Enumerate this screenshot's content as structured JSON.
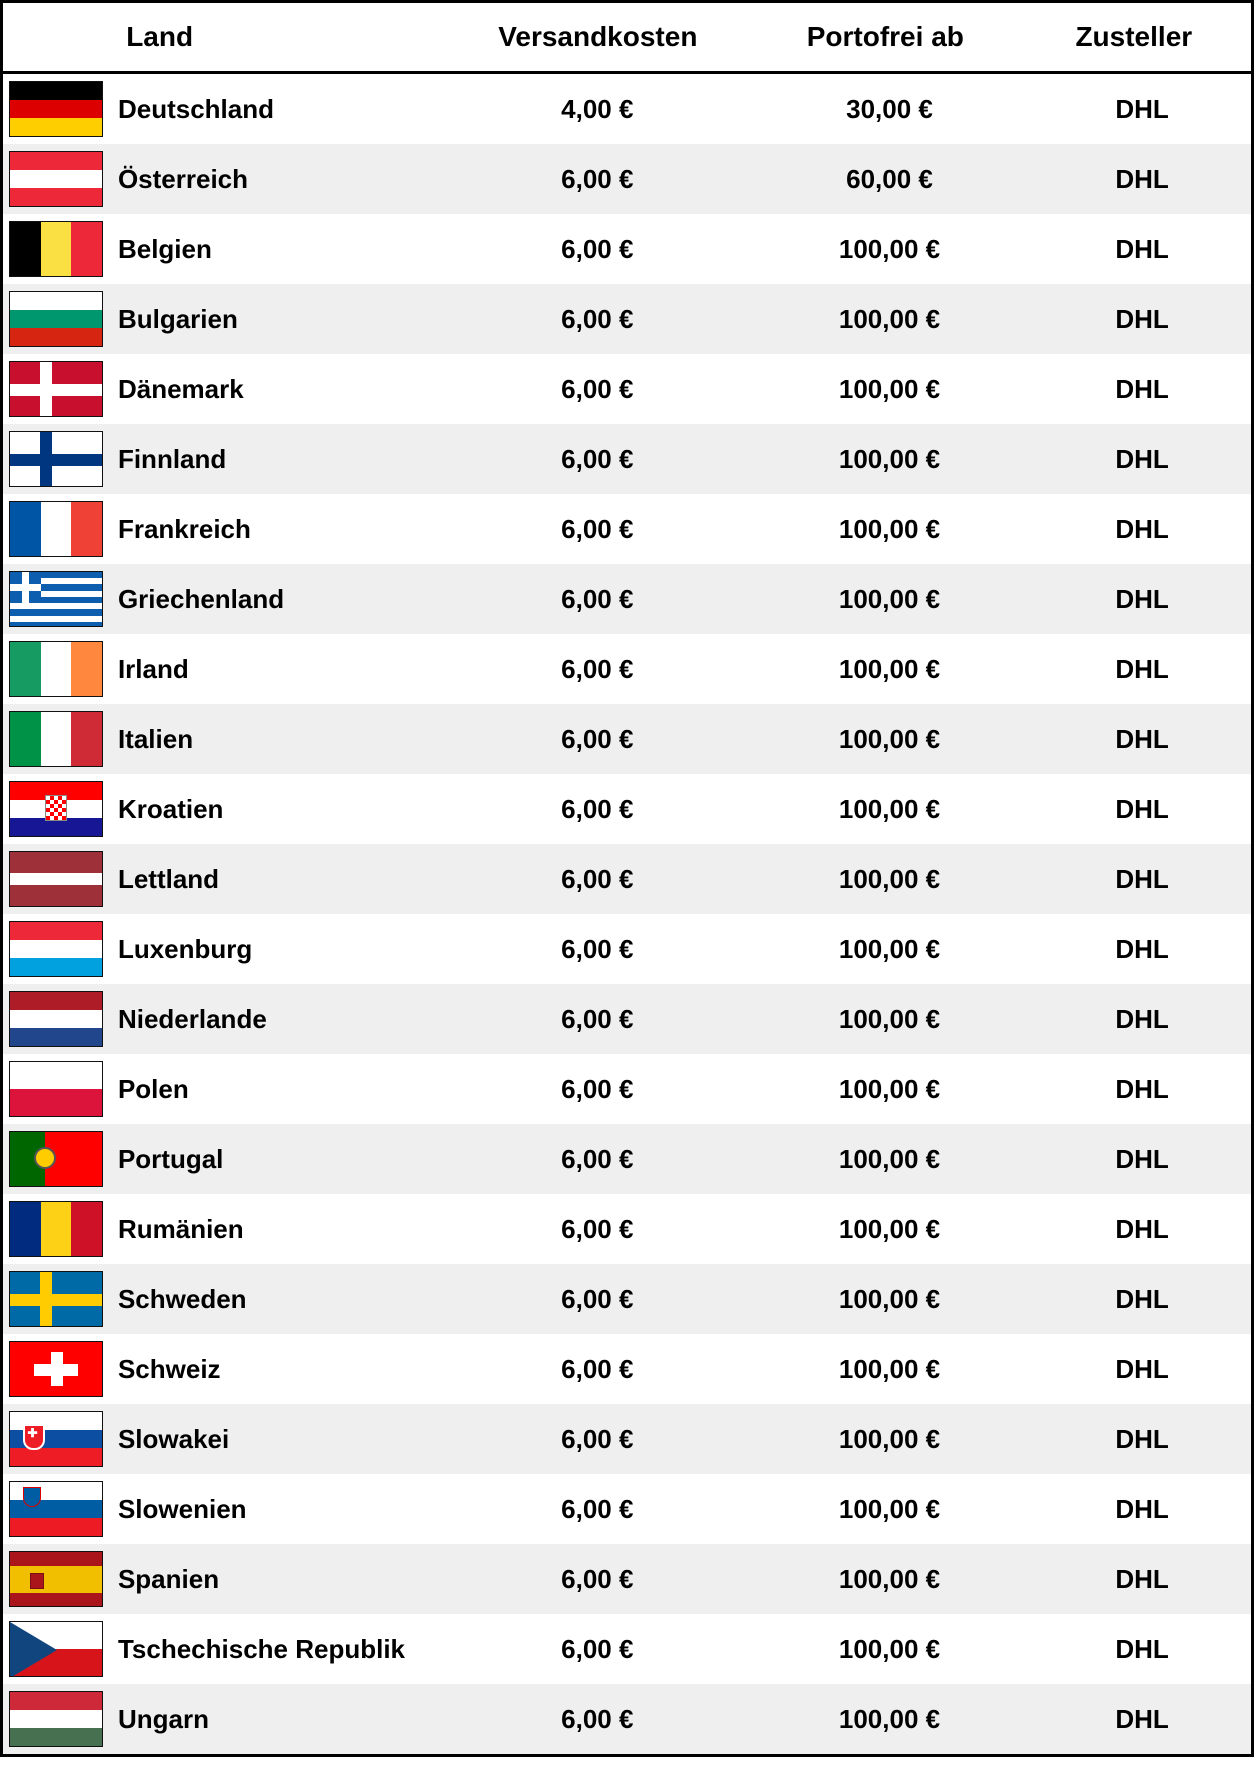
{
  "table": {
    "columns": {
      "land": "Land",
      "versandkosten": "Versandkosten",
      "portofrei": "Portofrei ab",
      "zusteller": "Zusteller"
    },
    "row_bg_odd": "#ffffff",
    "row_bg_even": "#efefef",
    "border_color": "#000000",
    "font_family": "Arial",
    "header_fontsize_pt": 21,
    "cell_fontsize_pt": 19,
    "rows": [
      {
        "flag": "de",
        "land": "Deutschland",
        "cost": "4,00 €",
        "free": "30,00 €",
        "zust": "DHL"
      },
      {
        "flag": "at",
        "land": "Österreich",
        "cost": "6,00 €",
        "free": "60,00 €",
        "zust": "DHL"
      },
      {
        "flag": "be",
        "land": "Belgien",
        "cost": "6,00 €",
        "free": "100,00 €",
        "zust": "DHL"
      },
      {
        "flag": "bg",
        "land": "Bulgarien",
        "cost": "6,00 €",
        "free": "100,00 €",
        "zust": "DHL"
      },
      {
        "flag": "dk",
        "land": "Dänemark",
        "cost": "6,00 €",
        "free": "100,00 €",
        "zust": "DHL"
      },
      {
        "flag": "fi",
        "land": "Finnland",
        "cost": "6,00 €",
        "free": "100,00 €",
        "zust": "DHL"
      },
      {
        "flag": "fr",
        "land": "Frankreich",
        "cost": "6,00 €",
        "free": "100,00 €",
        "zust": "DHL"
      },
      {
        "flag": "gr",
        "land": "Griechenland",
        "cost": "6,00 €",
        "free": "100,00 €",
        "zust": "DHL"
      },
      {
        "flag": "ie",
        "land": "Irland",
        "cost": "6,00 €",
        "free": "100,00 €",
        "zust": "DHL"
      },
      {
        "flag": "it",
        "land": "Italien",
        "cost": "6,00 €",
        "free": "100,00 €",
        "zust": "DHL"
      },
      {
        "flag": "hr",
        "land": "Kroatien",
        "cost": "6,00 €",
        "free": "100,00 €",
        "zust": "DHL"
      },
      {
        "flag": "lv",
        "land": "Lettland",
        "cost": "6,00 €",
        "free": "100,00 €",
        "zust": "DHL"
      },
      {
        "flag": "lu",
        "land": "Luxenburg",
        "cost": "6,00 €",
        "free": "100,00 €",
        "zust": "DHL"
      },
      {
        "flag": "nl",
        "land": "Niederlande",
        "cost": "6,00 €",
        "free": "100,00 €",
        "zust": "DHL"
      },
      {
        "flag": "pl",
        "land": "Polen",
        "cost": "6,00 €",
        "free": "100,00 €",
        "zust": "DHL"
      },
      {
        "flag": "pt",
        "land": "Portugal",
        "cost": "6,00 €",
        "free": "100,00 €",
        "zust": "DHL"
      },
      {
        "flag": "ro",
        "land": "Rumänien",
        "cost": "6,00 €",
        "free": "100,00 €",
        "zust": "DHL"
      },
      {
        "flag": "se",
        "land": "Schweden",
        "cost": "6,00 €",
        "free": "100,00 €",
        "zust": "DHL"
      },
      {
        "flag": "ch",
        "land": "Schweiz",
        "cost": "6,00 €",
        "free": "100,00 €",
        "zust": "DHL"
      },
      {
        "flag": "sk",
        "land": "Slowakei",
        "cost": "6,00 €",
        "free": "100,00 €",
        "zust": "DHL"
      },
      {
        "flag": "si",
        "land": "Slowenien",
        "cost": "6,00 €",
        "free": "100,00 €",
        "zust": "DHL"
      },
      {
        "flag": "es",
        "land": "Spanien",
        "cost": "6,00 €",
        "free": "100,00 €",
        "zust": "DHL"
      },
      {
        "flag": "cz",
        "land": "Tschechische Republik",
        "cost": "6,00 €",
        "free": "100,00 €",
        "zust": "DHL"
      },
      {
        "flag": "hu",
        "land": "Ungarn",
        "cost": "6,00 €",
        "free": "100,00 €",
        "zust": "DHL"
      }
    ],
    "flag_colors": {
      "de": [
        "#000000",
        "#dd0000",
        "#ffce00"
      ],
      "at": [
        "#ed2939",
        "#ffffff",
        "#ed2939"
      ],
      "be": [
        "#000000",
        "#fae042",
        "#ed2939"
      ],
      "bg": [
        "#ffffff",
        "#00966e",
        "#d62612"
      ],
      "dk": {
        "bg": "#c8102e",
        "cross": "#ffffff"
      },
      "fi": {
        "bg": "#ffffff",
        "cross": "#003580"
      },
      "fr": [
        "#0055a4",
        "#ffffff",
        "#ef4135"
      ],
      "gr": {
        "blue": "#0d5eaf",
        "white": "#ffffff"
      },
      "ie": [
        "#169b62",
        "#ffffff",
        "#ff883e"
      ],
      "it": [
        "#009246",
        "#ffffff",
        "#ce2b37"
      ],
      "hr": {
        "top": "#ff0000",
        "mid": "#ffffff",
        "bot": "#171796",
        "emblem": "#ff0000"
      },
      "lv": [
        "#9e3039",
        "#ffffff",
        "#9e3039"
      ],
      "lu": [
        "#ed2939",
        "#ffffff",
        "#00a1de"
      ],
      "nl": [
        "#ae1c28",
        "#ffffff",
        "#21468b"
      ],
      "pl": [
        "#ffffff",
        "#dc143c"
      ],
      "pt": {
        "left": "#006600",
        "right": "#ff0000",
        "emblem": "#ffcc00"
      },
      "ro": [
        "#002b7f",
        "#fcd116",
        "#ce1126"
      ],
      "se": {
        "bg": "#006aa7",
        "cross": "#fecc00"
      },
      "ch": {
        "bg": "#ff0000",
        "cross": "#ffffff"
      },
      "sk": {
        "top": "#ffffff",
        "mid": "#0b4ea2",
        "bot": "#ee1c25",
        "emblem": "#ee1c25"
      },
      "si": {
        "top": "#ffffff",
        "mid": "#005da4",
        "bot": "#ed1c24",
        "emblem": "#005da4"
      },
      "es": {
        "top": "#aa151b",
        "mid": "#f1bf00",
        "bot": "#aa151b",
        "emblem": "#aa151b"
      },
      "cz": {
        "top": "#ffffff",
        "bot": "#d7141a",
        "tri": "#11457e"
      },
      "hu": [
        "#ce2939",
        "#ffffff",
        "#477050"
      ]
    }
  }
}
